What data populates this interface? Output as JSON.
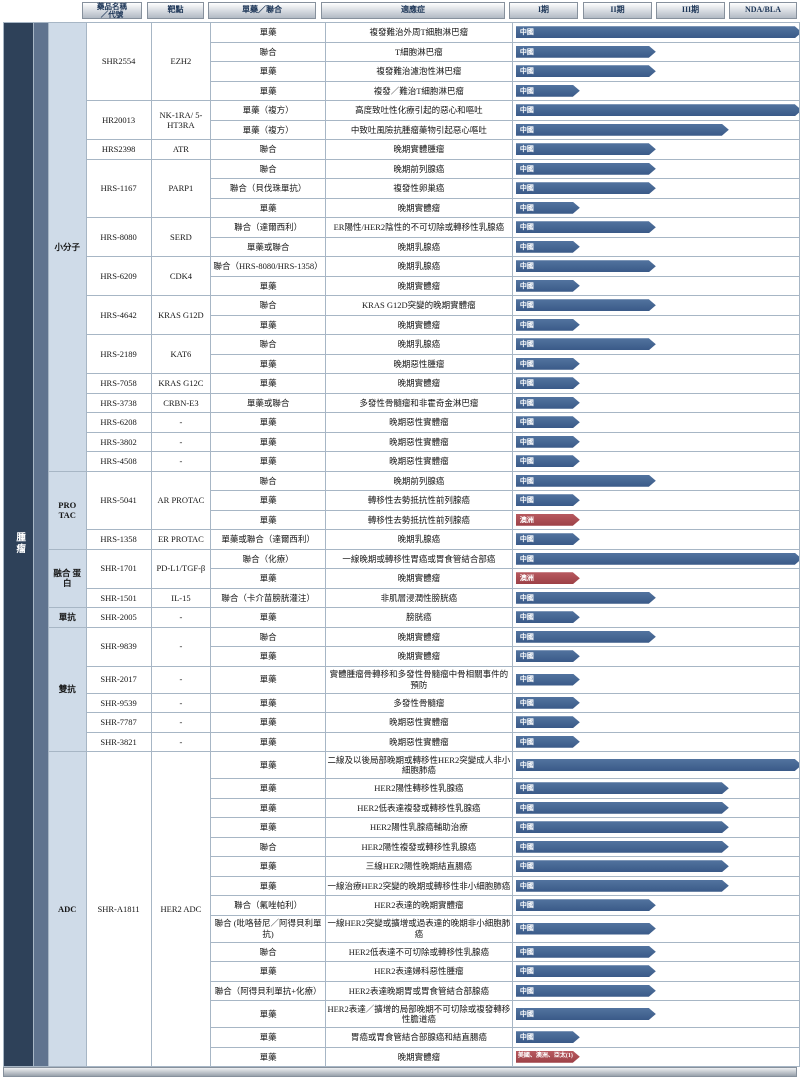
{
  "left_band": {
    "vertical_label": "腫瘤"
  },
  "header": {
    "col_drug": "藥品名稱\n／代號",
    "col_target": "靶點",
    "col_mode": "單藥／聯合",
    "col_indication": "適應症",
    "phases": [
      "I期",
      "II期",
      "III期",
      "NDA/BLA"
    ]
  },
  "colors": {
    "bar_blue": "#3e5f8e",
    "bar_red": "#a94a50",
    "band_dark": "#2e4159",
    "band_light": "#60748f",
    "category_bg": "#cfdbe8",
    "header_text": "#1c3557"
  },
  "phase_widths": {
    "I": 64,
    "II": 140,
    "III": 213,
    "NDA": 286
  },
  "groups": [
    {
      "category": "小分子",
      "drugs": [
        {
          "name": "SHR2554",
          "target": "EZH2",
          "rows": [
            {
              "mode": "單藥",
              "indication": "複發難治外周T細胞淋巴瘤",
              "region": "中國",
              "phase": "NDA",
              "color": "blue"
            },
            {
              "mode": "聯合",
              "indication": "T細胞淋巴瘤",
              "region": "中國",
              "phase": "II",
              "color": "blue"
            },
            {
              "mode": "單藥",
              "indication": "複發難治濾泡性淋巴瘤",
              "region": "中國",
              "phase": "II",
              "color": "blue"
            },
            {
              "mode": "單藥",
              "indication": "複發／難治T細胞淋巴瘤",
              "region": "中國",
              "phase": "I",
              "color": "blue"
            }
          ]
        },
        {
          "name": "HR20013",
          "target": "NK-1RA/ 5-HT3RA",
          "rows": [
            {
              "mode": "單藥（複方）",
              "indication": "高度致吐性化療引起的惡心和嘔吐",
              "region": "中國",
              "phase": "NDA",
              "color": "blue"
            },
            {
              "mode": "單藥（複方）",
              "indication": "中致吐風險抗腫瘤藥物引起惡心嘔吐",
              "region": "中國",
              "phase": "III",
              "color": "blue"
            }
          ]
        },
        {
          "name": "HRS2398",
          "target": "ATR",
          "rows": [
            {
              "mode": "聯合",
              "indication": "晚期實體腫瘤",
              "region": "中國",
              "phase": "II",
              "color": "blue"
            }
          ]
        },
        {
          "name": "HRS-1167",
          "target": "PARP1",
          "rows": [
            {
              "mode": "聯合",
              "indication": "晚期前列腺癌",
              "region": "中國",
              "phase": "II",
              "color": "blue"
            },
            {
              "mode": "聯合（貝伐珠單抗）",
              "indication": "複發性卵巢癌",
              "region": "中國",
              "phase": "II",
              "color": "blue"
            },
            {
              "mode": "單藥",
              "indication": "晚期實體瘤",
              "region": "中國",
              "phase": "I",
              "color": "blue"
            }
          ]
        },
        {
          "name": "HRS-8080",
          "target": "SERD",
          "rows": [
            {
              "mode": "聯合（達爾西利）",
              "indication": "ER陽性/HER2陰性的不可切除或轉移性乳腺癌",
              "region": "中國",
              "phase": "II",
              "color": "blue"
            },
            {
              "mode": "單藥或聯合",
              "indication": "晚期乳腺癌",
              "region": "中國",
              "phase": "I",
              "color": "blue"
            }
          ]
        },
        {
          "name": "HRS-6209",
          "target": "CDK4",
          "rows": [
            {
              "mode": "聯合（HRS-8080/HRS-1358）",
              "indication": "晚期乳腺癌",
              "region": "中國",
              "phase": "II",
              "color": "blue"
            },
            {
              "mode": "單藥",
              "indication": "晚期實體瘤",
              "region": "中國",
              "phase": "I",
              "color": "blue"
            }
          ]
        },
        {
          "name": "HRS-4642",
          "target": "KRAS G12D",
          "rows": [
            {
              "mode": "聯合",
              "indication": "KRAS G12D突變的晚期實體瘤",
              "region": "中國",
              "phase": "II",
              "color": "blue"
            },
            {
              "mode": "單藥",
              "indication": "晚期實體瘤",
              "region": "中國",
              "phase": "I",
              "color": "blue"
            }
          ]
        },
        {
          "name": "HRS-2189",
          "target": "KAT6",
          "rows": [
            {
              "mode": "聯合",
              "indication": "晚期乳腺癌",
              "region": "中國",
              "phase": "II",
              "color": "blue"
            },
            {
              "mode": "單藥",
              "indication": "晚期惡性腫瘤",
              "region": "中國",
              "phase": "I",
              "color": "blue"
            }
          ]
        },
        {
          "name": "HRS-7058",
          "target": "KRAS G12C",
          "rows": [
            {
              "mode": "單藥",
              "indication": "晚期實體瘤",
              "region": "中國",
              "phase": "I",
              "color": "blue"
            }
          ]
        },
        {
          "name": "HRS-3738",
          "target": "CRBN-E3",
          "rows": [
            {
              "mode": "單藥或聯合",
              "indication": "多發性骨髓瘤和非霍奇金淋巴瘤",
              "region": "中國",
              "phase": "I",
              "color": "blue"
            }
          ]
        },
        {
          "name": "HRS-6208",
          "target": "-",
          "rows": [
            {
              "mode": "單藥",
              "indication": "晚期惡性實體瘤",
              "region": "中國",
              "phase": "I",
              "color": "blue"
            }
          ]
        },
        {
          "name": "HRS-3802",
          "target": "-",
          "rows": [
            {
              "mode": "單藥",
              "indication": "晚期惡性實體瘤",
              "region": "中國",
              "phase": "I",
              "color": "blue"
            }
          ]
        },
        {
          "name": "HRS-4508",
          "target": "-",
          "rows": [
            {
              "mode": "單藥",
              "indication": "晚期惡性實體瘤",
              "region": "中國",
              "phase": "I",
              "color": "blue"
            }
          ]
        }
      ]
    },
    {
      "category": "PRO TAC",
      "drugs": [
        {
          "name": "HRS-5041",
          "target": "AR PROTAC",
          "rows": [
            {
              "mode": "聯合",
              "indication": "晚期前列腺癌",
              "region": "中國",
              "phase": "II",
              "color": "blue"
            },
            {
              "mode": "單藥",
              "indication": "轉移性去勢抵抗性前列腺癌",
              "region": "中國",
              "phase": "I",
              "color": "blue"
            },
            {
              "mode": "單藥",
              "indication": "轉移性去勢抵抗性前列腺癌",
              "region": "澳洲",
              "phase": "I",
              "color": "red"
            }
          ]
        },
        {
          "name": "HRS-1358",
          "target": "ER PROTAC",
          "rows": [
            {
              "mode": "單藥或聯合（達爾西利）",
              "indication": "晚期乳腺癌",
              "region": "中國",
              "phase": "I",
              "color": "blue"
            }
          ]
        }
      ]
    },
    {
      "category": "融合 蛋白",
      "drugs": [
        {
          "name": "SHR-1701",
          "target": "PD-L1/TGF-β",
          "rows": [
            {
              "mode": "聯合（化療）",
              "indication": "一線晚期或轉移性胃癌或胃食管結合部癌",
              "region": "中國",
              "phase": "NDA",
              "color": "blue"
            },
            {
              "mode": "單藥",
              "indication": "晚期實體瘤",
              "region": "澳洲",
              "phase": "I",
              "color": "red"
            }
          ]
        },
        {
          "name": "SHR-1501",
          "target": "IL-15",
          "rows": [
            {
              "mode": "聯合（卡介苗膀胱灌注）",
              "indication": "非肌層浸潤性膀胱癌",
              "region": "中國",
              "phase": "II",
              "color": "blue"
            }
          ]
        }
      ]
    },
    {
      "category": "單抗",
      "drugs": [
        {
          "name": "SHR-2005",
          "target": "-",
          "rows": [
            {
              "mode": "單藥",
              "indication": "膀胱癌",
              "region": "中國",
              "phase": "I",
              "color": "blue"
            }
          ]
        }
      ]
    },
    {
      "category": "雙抗",
      "drugs": [
        {
          "name": "SHR-9839",
          "target": "-",
          "rows": [
            {
              "mode": "聯合",
              "indication": "晚期實體瘤",
              "region": "中國",
              "phase": "II",
              "color": "blue"
            },
            {
              "mode": "單藥",
              "indication": "晚期實體瘤",
              "region": "中國",
              "phase": "I",
              "color": "blue"
            }
          ]
        },
        {
          "name": "SHR-2017",
          "target": "-",
          "rows": [
            {
              "mode": "單藥",
              "indication": "實體腫瘤骨轉移和多發性骨髓瘤中骨相關事件的預防",
              "region": "中國",
              "phase": "I",
              "color": "blue",
              "tall": true
            }
          ]
        },
        {
          "name": "SHR-9539",
          "target": "-",
          "rows": [
            {
              "mode": "單藥",
              "indication": "多發性骨髓瘤",
              "region": "中國",
              "phase": "I",
              "color": "blue"
            }
          ]
        },
        {
          "name": "SHR-7787",
          "target": "-",
          "rows": [
            {
              "mode": "單藥",
              "indication": "晚期惡性實體瘤",
              "region": "中國",
              "phase": "I",
              "color": "blue"
            }
          ]
        },
        {
          "name": "SHR-3821",
          "target": "-",
          "rows": [
            {
              "mode": "單藥",
              "indication": "晚期惡性實體瘤",
              "region": "中國",
              "phase": "I",
              "color": "blue"
            }
          ]
        }
      ]
    },
    {
      "category": "ADC",
      "drugs": [
        {
          "name": "SHR-A1811",
          "target": "HER2 ADC",
          "rows": [
            {
              "mode": "單藥",
              "indication": "二線及以後局部晚期或轉移性HER2突變成人非小細胞肺癌",
              "region": "中國",
              "phase": "NDA",
              "color": "blue",
              "tall": true
            },
            {
              "mode": "單藥",
              "indication": "HER2陽性轉移性乳腺癌",
              "region": "中國",
              "phase": "III",
              "color": "blue"
            },
            {
              "mode": "單藥",
              "indication": "HER2低表達複發或轉移性乳腺癌",
              "region": "中國",
              "phase": "III",
              "color": "blue"
            },
            {
              "mode": "單藥",
              "indication": "HER2陽性乳腺癌輔助治療",
              "region": "中國",
              "phase": "III",
              "color": "blue"
            },
            {
              "mode": "聯合",
              "indication": "HER2陽性複發或轉移性乳腺癌",
              "region": "中國",
              "phase": "III",
              "color": "blue"
            },
            {
              "mode": "單藥",
              "indication": "三線HER2陽性晚期結直腸癌",
              "region": "中國",
              "phase": "III",
              "color": "blue"
            },
            {
              "mode": "單藥",
              "indication": "一線治療HER2突變的晚期或轉移性非小細胞肺癌",
              "region": "中國",
              "phase": "III",
              "color": "blue"
            },
            {
              "mode": "聯合（氟唑帕利）",
              "indication": "HER2表達的晚期實體瘤",
              "region": "中國",
              "phase": "II",
              "color": "blue"
            },
            {
              "mode": "聯合 (吡咯替尼／阿得貝利單抗)",
              "indication": "一線HER2突變或擴增或過表達的晚期非小細胞肺癌",
              "region": "中國",
              "phase": "II",
              "color": "blue",
              "tall": true
            },
            {
              "mode": "聯合",
              "indication": "HER2低表達不可切除或轉移性乳腺癌",
              "region": "中國",
              "phase": "II",
              "color": "blue"
            },
            {
              "mode": "單藥",
              "indication": "HER2表達婦科惡性腫瘤",
              "region": "中國",
              "phase": "II",
              "color": "blue"
            },
            {
              "mode": "聯合（阿得貝利單抗+化療）",
              "indication": "HER2表達晚期胃或胃食管結合部腺癌",
              "region": "中國",
              "phase": "II",
              "color": "blue"
            },
            {
              "mode": "單藥",
              "indication": "HER2表達／擴增的局部晚期不可切除或複發轉移性膽道癌",
              "region": "中國",
              "phase": "II",
              "color": "blue",
              "tall": true
            },
            {
              "mode": "單藥",
              "indication": "胃癌或胃食管結合部腺癌和結直腸癌",
              "region": "中國",
              "phase": "I",
              "color": "blue"
            },
            {
              "mode": "單藥",
              "indication": "晚期實體瘤",
              "region": "美國、澳洲、亞太(1)",
              "phase": "I",
              "color": "red"
            }
          ]
        }
      ]
    }
  ]
}
